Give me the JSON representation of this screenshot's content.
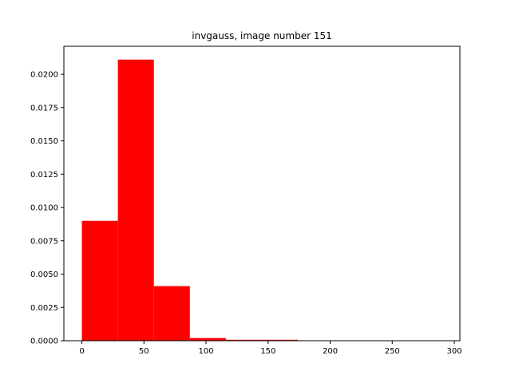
{
  "chart_data": {
    "type": "bar",
    "title": "invgauss, image number 151",
    "xlabel": "",
    "ylabel": "",
    "bar_color": "#ff0000",
    "xlim": [
      -14.5,
      304.5
    ],
    "ylim": [
      0,
      0.0221
    ],
    "xticks": [
      0,
      50,
      100,
      150,
      200,
      250,
      300
    ],
    "yticks": [
      "0.0000",
      "0.0025",
      "0.0050",
      "0.0075",
      "0.0100",
      "0.0125",
      "0.0150",
      "0.0175",
      "0.0200"
    ],
    "bins": [
      {
        "start": 0,
        "end": 29,
        "value": 0.009
      },
      {
        "start": 29,
        "end": 58,
        "value": 0.0211
      },
      {
        "start": 58,
        "end": 87,
        "value": 0.0041
      },
      {
        "start": 87,
        "end": 116,
        "value": 0.0002
      },
      {
        "start": 116,
        "end": 145,
        "value": 7e-05
      },
      {
        "start": 145,
        "end": 174,
        "value": 7e-05
      },
      {
        "start": 174,
        "end": 203,
        "value": 0
      },
      {
        "start": 203,
        "end": 232,
        "value": 0
      },
      {
        "start": 232,
        "end": 261,
        "value": 0
      },
      {
        "start": 261,
        "end": 290,
        "value": 0
      }
    ]
  }
}
